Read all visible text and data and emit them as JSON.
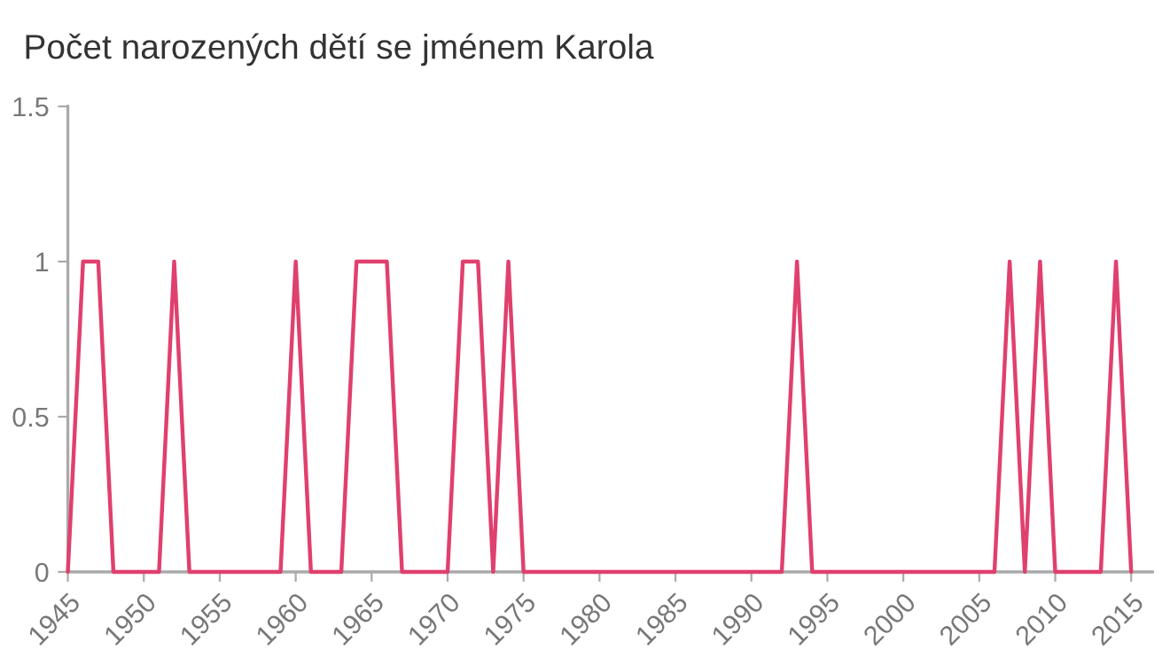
{
  "chart_data": {
    "type": "line",
    "title": "Počet narozených dětí se jménem Karola",
    "x": [
      1945,
      1946,
      1947,
      1948,
      1949,
      1950,
      1951,
      1952,
      1953,
      1954,
      1955,
      1956,
      1957,
      1958,
      1959,
      1960,
      1961,
      1962,
      1963,
      1964,
      1965,
      1966,
      1967,
      1968,
      1969,
      1970,
      1971,
      1972,
      1973,
      1974,
      1975,
      1976,
      1977,
      1978,
      1979,
      1980,
      1981,
      1982,
      1983,
      1984,
      1985,
      1986,
      1987,
      1988,
      1989,
      1990,
      1991,
      1992,
      1993,
      1994,
      1995,
      1996,
      1997,
      1998,
      1999,
      2000,
      2001,
      2002,
      2003,
      2004,
      2005,
      2006,
      2007,
      2008,
      2009,
      2010,
      2011,
      2012,
      2013,
      2014,
      2015
    ],
    "series": [
      {
        "color": "#e0406e",
        "values": [
          0,
          1,
          1,
          0,
          0,
          0,
          0,
          1,
          0,
          0,
          0,
          0,
          0,
          0,
          0,
          1,
          0,
          0,
          0,
          1,
          1,
          1,
          0,
          0,
          0,
          0,
          1,
          1,
          0,
          1,
          0,
          0,
          0,
          0,
          0,
          0,
          0,
          0,
          0,
          0,
          0,
          0,
          0,
          0,
          0,
          0,
          0,
          0,
          1,
          0,
          0,
          0,
          0,
          0,
          0,
          0,
          0,
          0,
          0,
          0,
          0,
          0,
          1,
          0,
          1,
          0,
          0,
          0,
          0,
          1,
          0
        ]
      }
    ],
    "xlim": [
      1945,
      2016.4
    ],
    "xticks": [
      1945,
      1950,
      1955,
      1960,
      1965,
      1970,
      1975,
      1980,
      1985,
      1990,
      1995,
      2000,
      2005,
      2010,
      2015
    ],
    "ylim": [
      0,
      1.5
    ],
    "yticks": [
      0,
      0.5,
      1,
      1.5
    ],
    "grid": false,
    "legend": false,
    "marker": "none",
    "line_style": "solid"
  }
}
